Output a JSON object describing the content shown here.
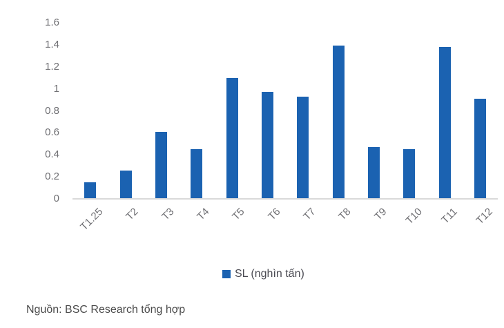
{
  "chart_data": {
    "type": "bar",
    "title": "",
    "xlabel": "",
    "ylabel": "",
    "categories": [
      "T1.25",
      "T2",
      "T3",
      "T4",
      "T5",
      "T6",
      "T7",
      "T8",
      "T9",
      "T10",
      "T11",
      "T12"
    ],
    "series": [
      {
        "name": "SL (nghìn tấn)",
        "values": [
          0.15,
          0.26,
          0.61,
          0.45,
          1.1,
          0.97,
          0.93,
          1.39,
          0.47,
          0.45,
          1.38,
          0.91
        ]
      }
    ],
    "ylim": [
      0,
      1.6
    ],
    "ytick_step": 0.2,
    "ytick_labels": [
      "0",
      "0.2",
      "0.4",
      "0.6",
      "0.8",
      "1",
      "1.2",
      "1.4",
      "1.6"
    ],
    "grid": false,
    "legend_position": "bottom",
    "x_label_rotation_deg": 45
  },
  "legend": {
    "swatch_icon": "blue-square-icon"
  },
  "footer": {
    "source_label": "Nguồn: BSC Research tổng hợp"
  },
  "colors": {
    "bar": "#1B62B1",
    "axis_line": "#D9D9D9",
    "tick_text": "#6F6F73",
    "legend_text": "#4A4A52",
    "footer_text": "#4A4A4A",
    "background": "#FFFFFF"
  }
}
